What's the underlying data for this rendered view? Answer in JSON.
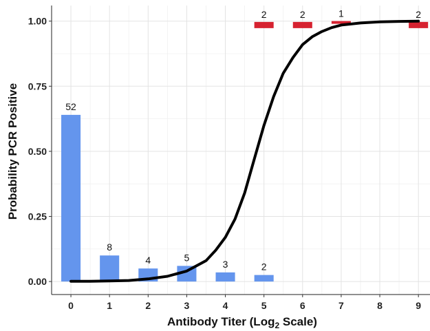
{
  "chart_data": {
    "type": "bar",
    "xlabel_main": "Antibody Titer (Log",
    "xlabel_sub": "2",
    "xlabel_end": " Scale)",
    "ylabel": "Probability PCR Positive",
    "xlim": [
      -0.5,
      9.3
    ],
    "ylim": [
      -0.05,
      1.06
    ],
    "x_ticks": [
      "0",
      "1",
      "2",
      "3",
      "4",
      "5",
      "6",
      "7",
      "8",
      "9"
    ],
    "y_ticks": [
      "0.00",
      "0.25",
      "0.50",
      "0.75",
      "1.00"
    ],
    "grid": true,
    "series": [
      {
        "values": [
          {
            "x": 0,
            "y": 0.64,
            "count": "52"
          },
          {
            "x": 1,
            "y": 0.1,
            "count": "8"
          },
          {
            "x": 2,
            "y": 0.05,
            "count": "4"
          },
          {
            "x": 3,
            "y": 0.06,
            "count": "5"
          },
          {
            "x": 4,
            "y": 0.035,
            "count": "3"
          },
          {
            "x": 5,
            "y": 0.025,
            "count": "2"
          }
        ],
        "color": "#6495ed"
      },
      {
        "values": [
          {
            "x": 5,
            "y": 0.985,
            "count": "2",
            "thick": true
          },
          {
            "x": 6,
            "y": 0.985,
            "count": "2",
            "thick": true
          },
          {
            "x": 7,
            "y": 0.995,
            "count": "1",
            "thick": false
          },
          {
            "x": 9,
            "y": 0.985,
            "count": "2",
            "thick": true
          }
        ],
        "color": "#d62230"
      }
    ],
    "curve": {
      "color": "#000000",
      "points": [
        [
          0,
          0.001
        ],
        [
          0.5,
          0.001
        ],
        [
          1,
          0.002
        ],
        [
          1.5,
          0.004
        ],
        [
          2,
          0.01
        ],
        [
          2.5,
          0.02
        ],
        [
          3,
          0.04
        ],
        [
          3.5,
          0.08
        ],
        [
          3.75,
          0.12
        ],
        [
          4,
          0.17
        ],
        [
          4.25,
          0.24
        ],
        [
          4.5,
          0.34
        ],
        [
          4.75,
          0.47
        ],
        [
          5,
          0.6
        ],
        [
          5.25,
          0.71
        ],
        [
          5.5,
          0.8
        ],
        [
          5.75,
          0.86
        ],
        [
          6,
          0.91
        ],
        [
          6.25,
          0.94
        ],
        [
          6.5,
          0.96
        ],
        [
          6.75,
          0.975
        ],
        [
          7,
          0.985
        ],
        [
          7.5,
          0.993
        ],
        [
          8,
          0.997
        ],
        [
          8.5,
          0.999
        ],
        [
          9,
          1.0
        ]
      ]
    }
  }
}
